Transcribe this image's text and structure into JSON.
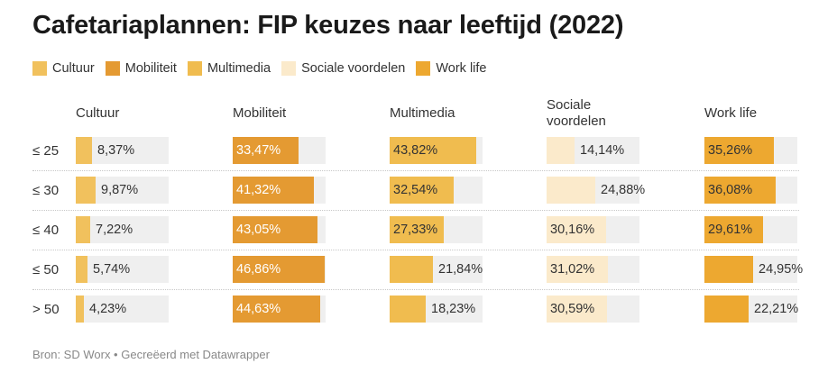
{
  "title": "Cafetariaplannen: FIP keuzes naar leeftijd (2022)",
  "source": "Bron: SD Worx • Gecreëerd met Datawrapper",
  "legend": [
    {
      "label": "Cultuur",
      "color": "#f1c15d"
    },
    {
      "label": "Mobiliteit",
      "color": "#e49a32"
    },
    {
      "label": "Multimedia",
      "color": "#f0bc4f"
    },
    {
      "label": "Sociale voordelen",
      "color": "#fbeacb"
    },
    {
      "label": "Work life",
      "color": "#eda830"
    }
  ],
  "chart_data": {
    "type": "table",
    "title": "Cafetariaplannen: FIP keuzes naar leeftijd (2022)",
    "columns": [
      "Cultuur",
      "Mobiliteit",
      "Multimedia",
      "Sociale voordelen",
      "Work life"
    ],
    "header_lines": [
      [
        "Cultuur"
      ],
      [
        "Mobiliteit"
      ],
      [
        "Multimedia"
      ],
      [
        "Sociale",
        "voordelen"
      ],
      [
        "Work life"
      ]
    ],
    "colors": [
      "#f1c15d",
      "#e49a32",
      "#f0bc4f",
      "#fbeacb",
      "#eda830"
    ],
    "text_colors": [
      "#333333",
      "#ffffff",
      "#333333",
      "#333333",
      "#333333"
    ],
    "rows": [
      {
        "label": "≤ 25",
        "values": [
          8.37,
          33.47,
          43.82,
          14.14,
          35.26
        ],
        "display": [
          "8,37%",
          "33,47%",
          "43,82%",
          "14,14%",
          "35,26%"
        ]
      },
      {
        "label": "≤ 30",
        "values": [
          9.87,
          41.32,
          32.54,
          24.88,
          36.08
        ],
        "display": [
          "9,87%",
          "41,32%",
          "32,54%",
          "24,88%",
          "36,08%"
        ]
      },
      {
        "label": "≤ 40",
        "values": [
          7.22,
          43.05,
          27.33,
          30.16,
          29.61
        ],
        "display": [
          "7,22%",
          "43,05%",
          "27,33%",
          "30,16%",
          "29,61%"
        ]
      },
      {
        "label": "≤ 50",
        "values": [
          5.74,
          46.86,
          21.84,
          31.02,
          24.95
        ],
        "display": [
          "5,74%",
          "46,86%",
          "21,84%",
          "31,02%",
          "24,95%"
        ]
      },
      {
        "label": "> 50",
        "values": [
          4.23,
          44.63,
          18.23,
          30.59,
          22.21
        ],
        "display": [
          "4,23%",
          "44,63%",
          "18,23%",
          "30,59%",
          "22,21%"
        ]
      }
    ],
    "scale_max": [
      47.16,
      47.16,
      47.16,
      47.16,
      47.16
    ]
  }
}
